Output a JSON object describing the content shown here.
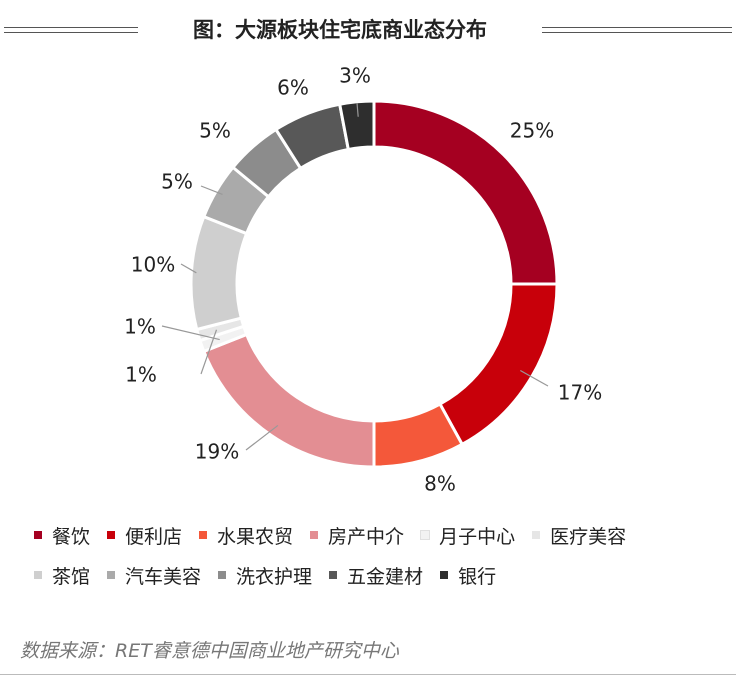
{
  "title": "图：大源板块住宅底商业态分布",
  "source": "数据来源：RET睿意德中国商业地产研究中心",
  "chart_data": {
    "type": "pie",
    "donut": true,
    "categories": [
      "餐饮",
      "便利店",
      "水果农贸",
      "房产中介",
      "月子中心",
      "医疗美容",
      "茶馆",
      "汽车美容",
      "洗衣护理",
      "五金建材",
      "银行"
    ],
    "values": [
      25,
      17,
      8,
      19,
      1,
      1,
      10,
      5,
      5,
      6,
      3
    ],
    "labels": [
      "25%",
      "17%",
      "8%",
      "19%",
      "1%",
      "1%",
      "10%",
      "5%",
      "5%",
      "6%",
      "3%"
    ],
    "colors": [
      "#A50021",
      "#C8000A",
      "#F4583A",
      "#E38E93",
      "#F2F2F2",
      "#E6E6E6",
      "#CFCFCF",
      "#AAAAAA",
      "#8C8C8C",
      "#585858",
      "#2E2E2E"
    ],
    "legend_position": "bottom"
  }
}
